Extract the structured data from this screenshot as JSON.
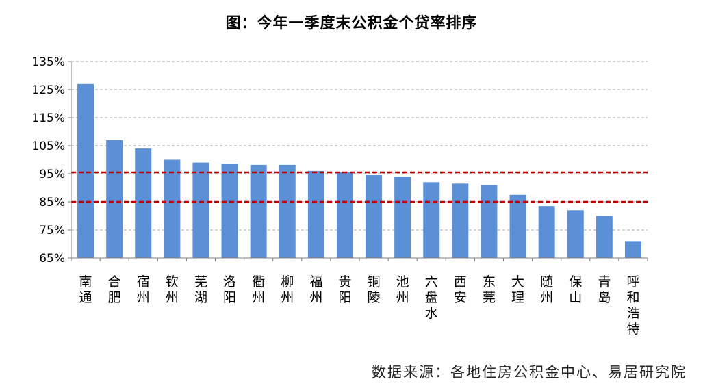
{
  "chart_data": {
    "type": "bar",
    "title": "图：今年一季度末公积金个贷率排序",
    "xlabel": "",
    "ylabel": "",
    "ylim": [
      65,
      135
    ],
    "yticks": [
      65,
      75,
      85,
      95,
      105,
      115,
      125,
      135
    ],
    "ytick_labels": [
      "65%",
      "75%",
      "85%",
      "95%",
      "105%",
      "115%",
      "125%",
      "135%"
    ],
    "grid": true,
    "legend": "none",
    "categories": [
      "南通",
      "合肥",
      "宿州",
      "钦州",
      "芜湖",
      "洛阳",
      "衢州",
      "柳州",
      "福州",
      "贵阳",
      "铜陵",
      "池州",
      "六盘水",
      "西安",
      "东莞",
      "大理",
      "随州",
      "保山",
      "青岛",
      "呼和浩特"
    ],
    "values": [
      127,
      107,
      104,
      100,
      99,
      98.5,
      98.2,
      98.2,
      96,
      95.5,
      94.5,
      94,
      92,
      91.5,
      91,
      87.5,
      83.5,
      82,
      80,
      71
    ],
    "reference_lines": [
      95.5,
      85
    ],
    "colors": {
      "bar": "#5b8fd6",
      "reference": "#c00000",
      "grid": "#a6a6a6",
      "axis": "#7f7f7f"
    },
    "source": "数据来源：各地住房公积金中心、易居研究院"
  }
}
